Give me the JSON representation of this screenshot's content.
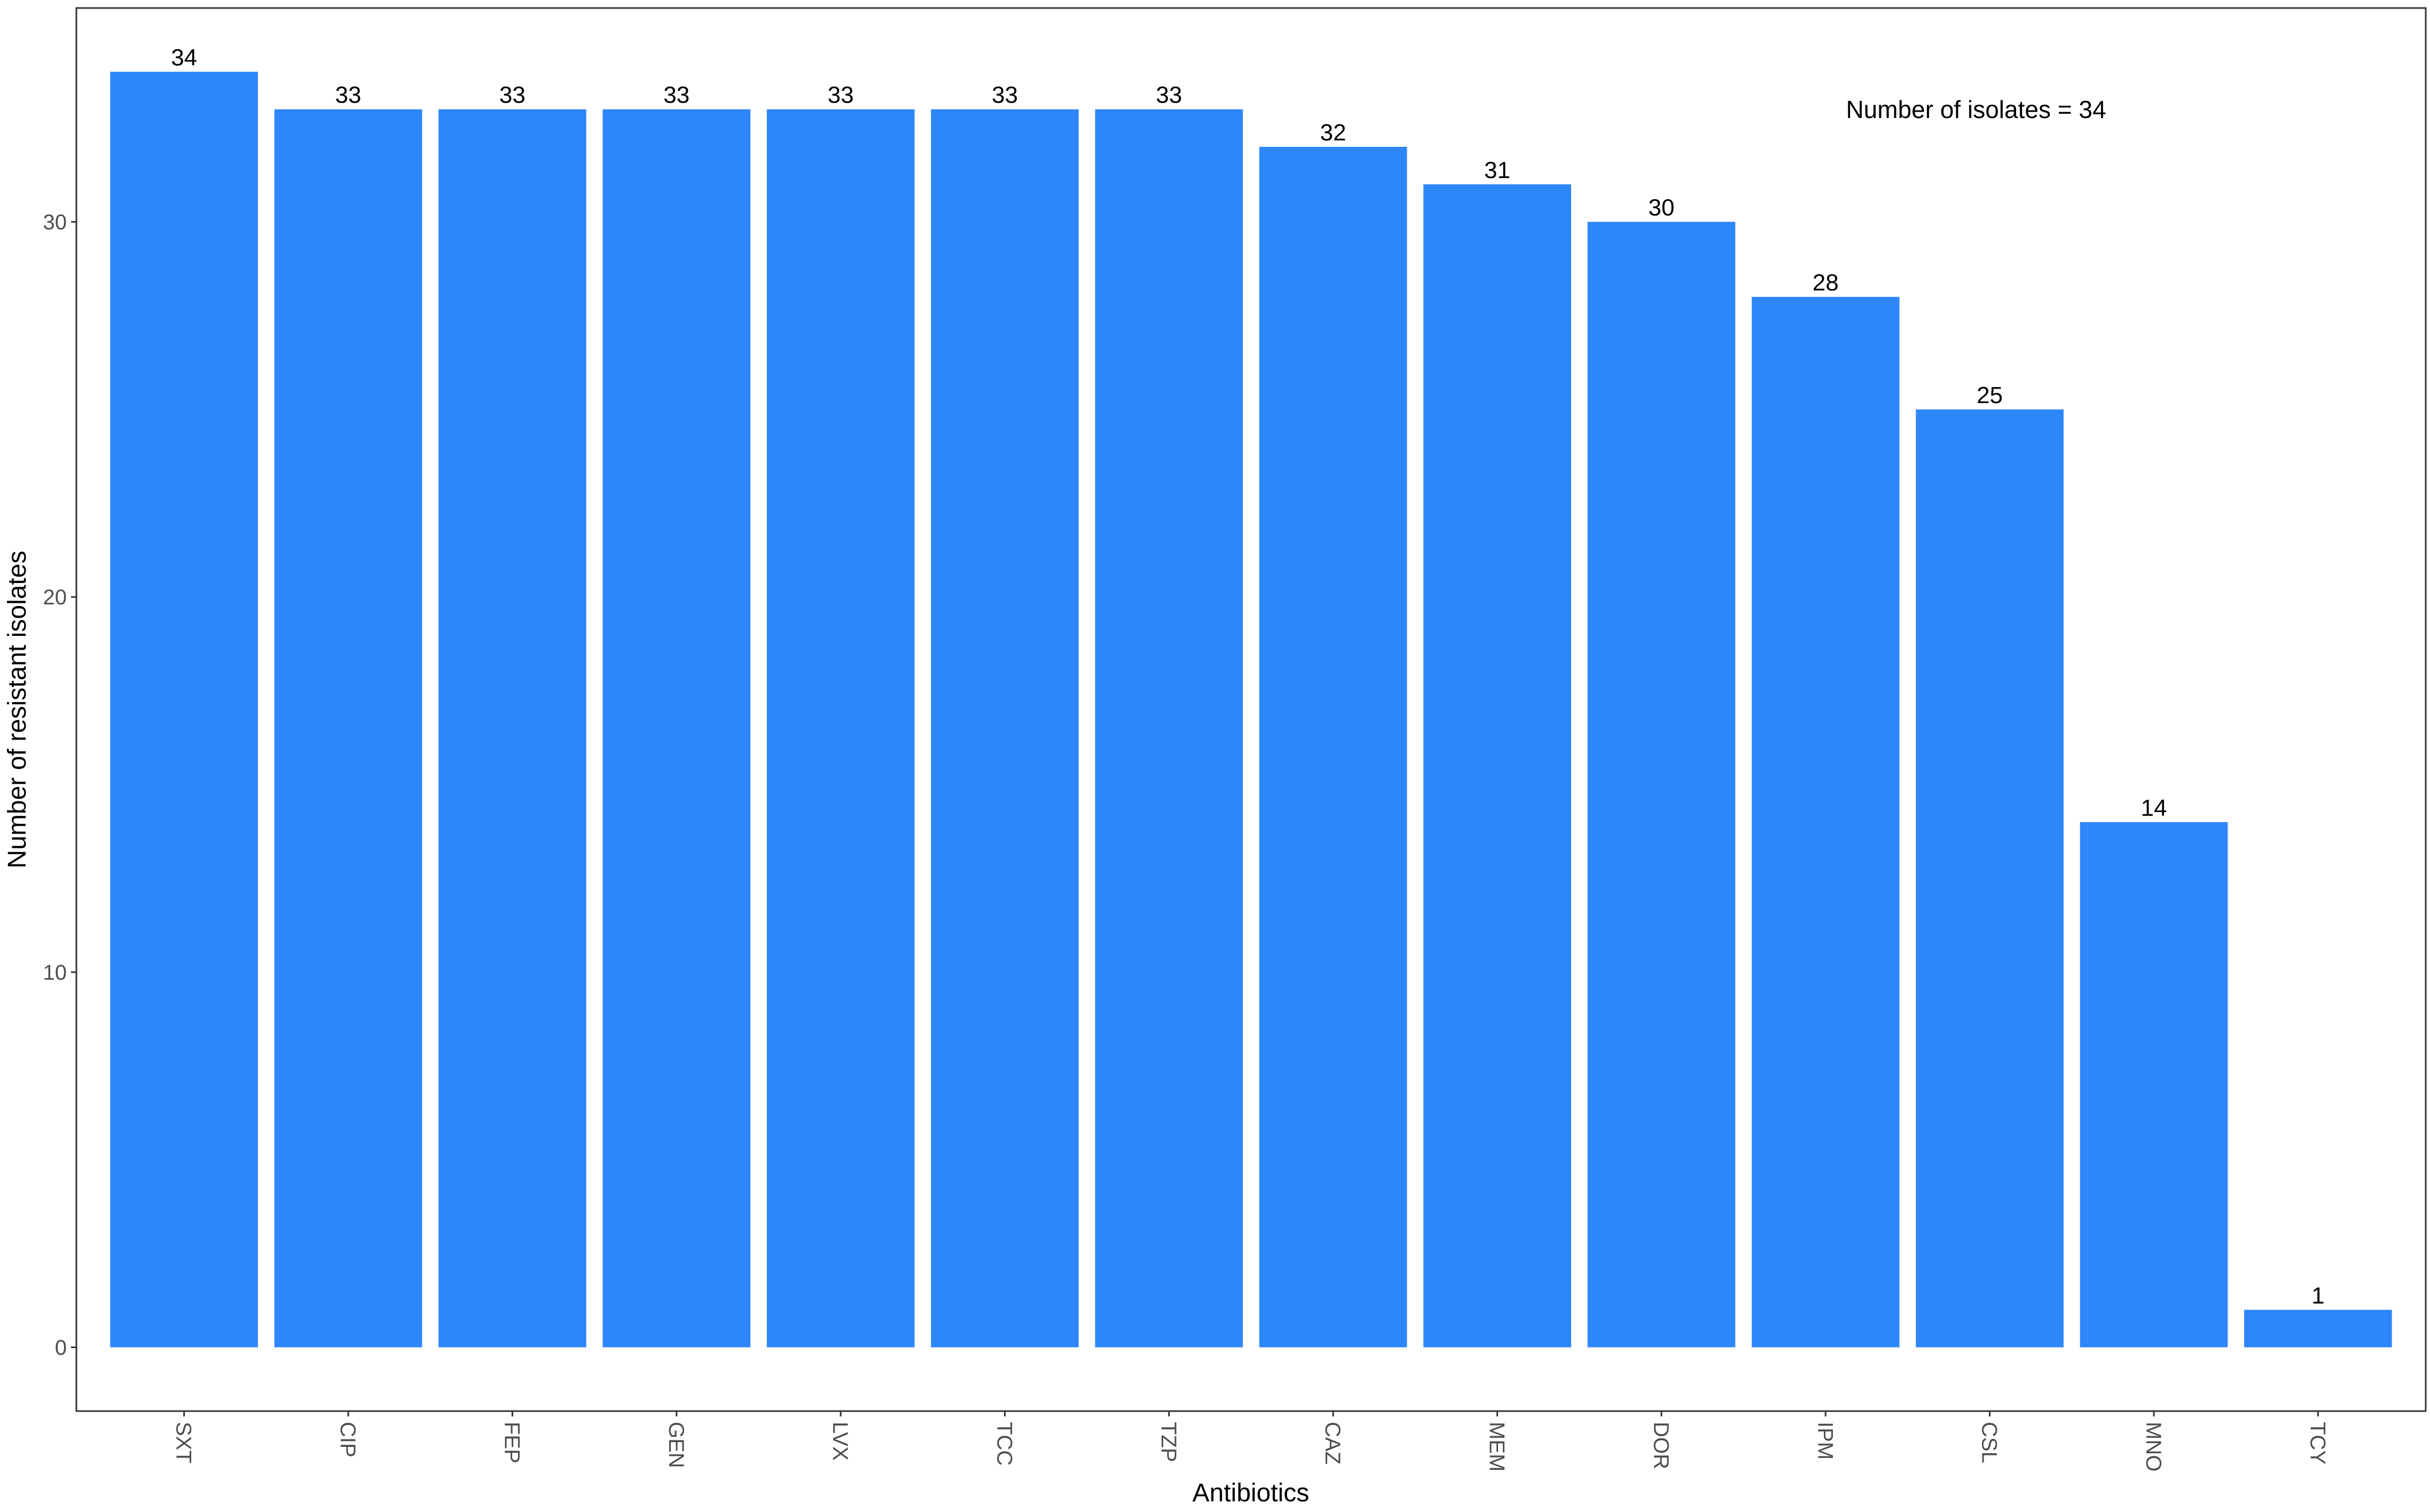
{
  "chart_data": {
    "type": "bar",
    "title": "",
    "xlabel": "Antibiotics",
    "ylabel": "Number of resistant isolates",
    "categories": [
      "SXT",
      "CIP",
      "FEP",
      "GEN",
      "LVX",
      "TCC",
      "TZP",
      "CAZ",
      "MEM",
      "DOR",
      "IPM",
      "CSL",
      "MNO",
      "TCY"
    ],
    "values": [
      34,
      33,
      33,
      33,
      33,
      33,
      33,
      32,
      31,
      30,
      28,
      25,
      14,
      1
    ],
    "ylim": [
      -1.7,
      35.7
    ],
    "yticks": [
      0,
      10,
      20,
      30
    ],
    "grid": false,
    "bar_color": "#2e86fb",
    "annotation": "Number of isolates = 34"
  }
}
